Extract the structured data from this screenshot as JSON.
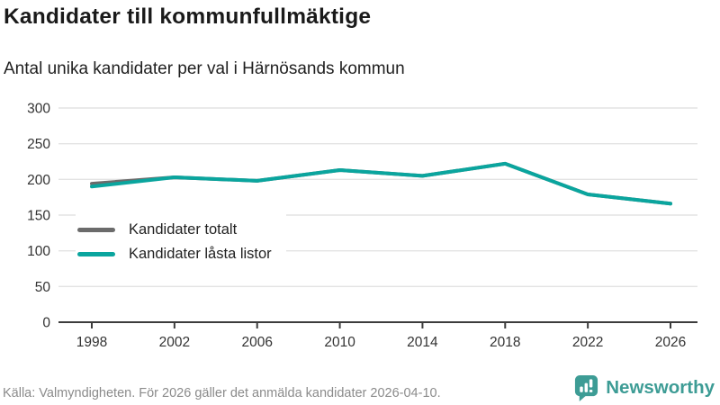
{
  "title": "Kandidater till kommunfullmäktige",
  "subtitle": "Antal unika kandidater per val i Härnösands kommun",
  "footer": {
    "source": "Källa: Valmyndigheten. För 2026 gäller det anmälda kandidater 2026-04-10.",
    "brand": "Newsworthy"
  },
  "colors": {
    "total": "#6b6b6b",
    "locked": "#0aa59e",
    "brand": "#3d9c95",
    "grid": "#e3e3e3",
    "axis": "#3c3c3c",
    "tick_label": "#333333"
  },
  "chart_data": {
    "type": "line",
    "title": "Kandidater till kommunfullmäktige",
    "subtitle": "Antal unika kandidater per val i Härnösands kommun",
    "x": [
      1998,
      2002,
      2006,
      2010,
      2014,
      2018,
      2022,
      2026
    ],
    "series": [
      {
        "name": "Kandidater totalt",
        "color_key": "total",
        "values": [
          194,
          203,
          198,
          213,
          205,
          222,
          179,
          166
        ]
      },
      {
        "name": "Kandidater låsta listor",
        "color_key": "locked",
        "values": [
          190,
          203,
          198,
          213,
          205,
          222,
          179,
          166
        ]
      }
    ],
    "ylim": [
      0,
      300
    ],
    "yticks": [
      0,
      50,
      100,
      150,
      200,
      250,
      300
    ],
    "xticks": [
      1998,
      2002,
      2006,
      2010,
      2014,
      2018,
      2022,
      2026
    ],
    "grid": true,
    "legend_position": "top-left-inside"
  }
}
